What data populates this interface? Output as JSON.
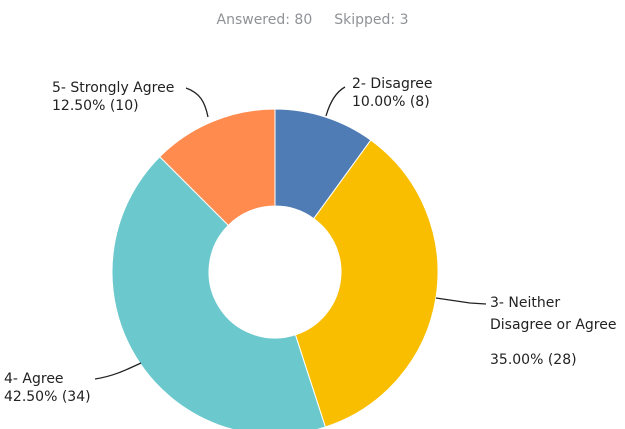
{
  "summary": {
    "answered": "Answered: 80",
    "skipped": "Skipped: 3"
  },
  "chart_data": {
    "type": "pie",
    "donut": true,
    "legend": "none",
    "slices": [
      {
        "category": "2- Disagree",
        "percent": 10.0,
        "count": 8,
        "value_label": "10.00% (8)",
        "color": "#507cb6"
      },
      {
        "category": "3- Neither Disagree or Agree",
        "percent": 35.0,
        "count": 28,
        "value_label": "35.00% (28)",
        "color": "#f9be00"
      },
      {
        "category": "4- Agree",
        "percent": 42.5,
        "count": 34,
        "value_label": "42.50% (34)",
        "color": "#6bc8cd"
      },
      {
        "category": "5- Strongly Agree",
        "percent": 12.5,
        "count": 10,
        "value_label": "12.50% (10)",
        "color": "#ff8b4f"
      }
    ],
    "label_lines": {
      "3- Neither Disagree or Agree": [
        "3- Neither",
        "Disagree or Agree"
      ]
    }
  }
}
